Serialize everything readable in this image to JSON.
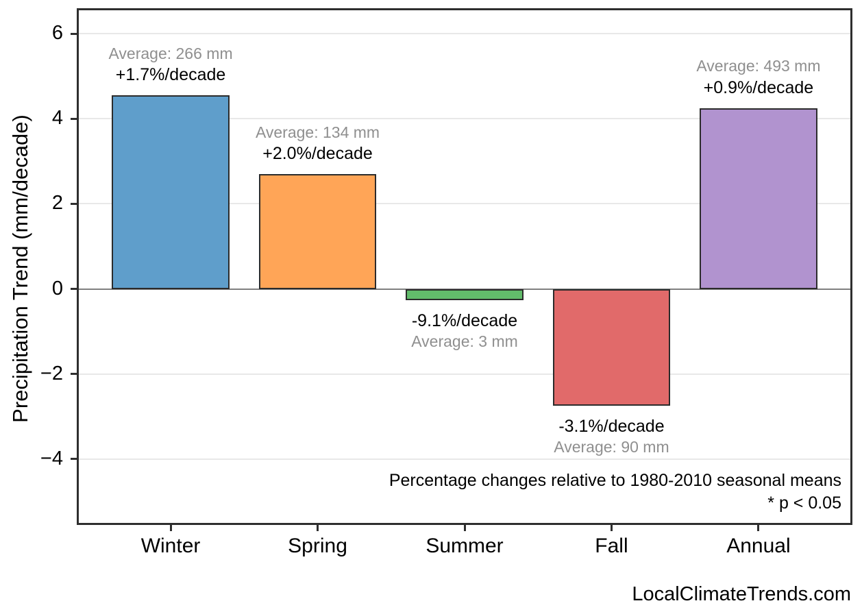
{
  "chart_data": {
    "type": "bar",
    "categories": [
      "Winter",
      "Spring",
      "Summer",
      "Fall",
      "Annual"
    ],
    "values": [
      4.55,
      2.7,
      -0.27,
      -2.75,
      4.25
    ],
    "averages_mm": [
      266,
      134,
      3,
      90,
      493
    ],
    "percent_change_per_decade": [
      1.7,
      2.0,
      -9.1,
      -3.1,
      0.9
    ],
    "bar_labels": [
      {
        "percent": "+1.7%/decade",
        "average": "Average: 266 mm"
      },
      {
        "percent": "+2.0%/decade",
        "average": "Average: 134 mm"
      },
      {
        "percent": "-9.1%/decade",
        "average": "Average: 3 mm"
      },
      {
        "percent": "-3.1%/decade",
        "average": "Average: 90 mm"
      },
      {
        "percent": "+0.9%/decade",
        "average": "Average: 493 mm"
      }
    ],
    "bar_colors": [
      "#5F9ECB",
      "#FFA557",
      "#62BC6B",
      "#E16A6A",
      "#B193CF"
    ],
    "bar_edge_color": "#2b2b2b",
    "ylabel": "Precipitation Trend (mm/decade)",
    "xlabel": "",
    "yticks": [
      6,
      4,
      2,
      0,
      -2,
      -4
    ],
    "ytick_labels": [
      "6",
      "4",
      "2",
      "0",
      "−2",
      "−4"
    ],
    "ylim": [
      -5.5,
      6.55
    ],
    "grid": true,
    "legend": "none",
    "gridline_color": "#e8e8e8",
    "zero_line_color": "#7f7f7f",
    "label_colors": {
      "percent": "#000000",
      "average": "#8f8f8f"
    },
    "note_line1": "Percentage changes relative to 1980-2010 seasonal means",
    "note_line2": "* p < 0.05"
  },
  "footer": {
    "watermark": "LocalClimateTrends.com"
  }
}
